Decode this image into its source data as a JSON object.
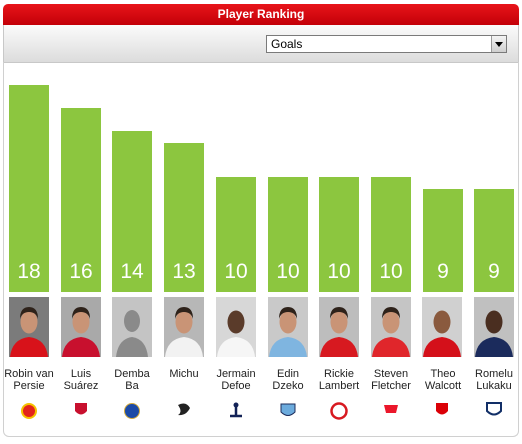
{
  "chart_data": {
    "type": "bar",
    "title": "Player Ranking",
    "metric": "Goals",
    "categories": [
      "Robin van\nPersie",
      "Luis\nSuárez",
      "Demba\nBa",
      "Michu",
      "Jermain\nDefoe",
      "Edin\nDzeko",
      "Rickie\nLambert",
      "Steven\nFletcher",
      "Theo\nWalcott",
      "Romelu\nLukaku"
    ],
    "values": [
      18,
      16,
      14,
      13,
      10,
      10,
      10,
      10,
      9,
      9
    ],
    "color": "#8cc63f"
  }
}
